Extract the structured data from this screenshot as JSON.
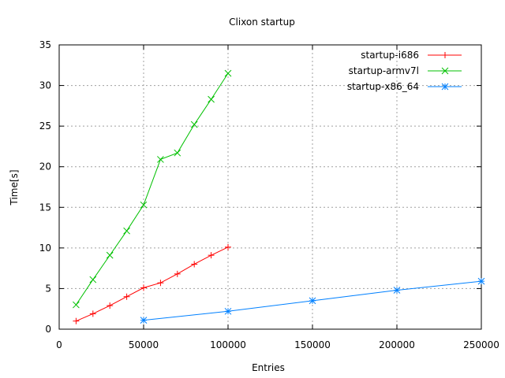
{
  "chart_data": {
    "type": "line",
    "title": "Clixon startup",
    "xlabel": "Entries",
    "ylabel": "Time[s]",
    "xlim": [
      0,
      250000
    ],
    "ylim": [
      0,
      35
    ],
    "xticks": [
      0,
      50000,
      100000,
      150000,
      200000,
      250000
    ],
    "yticks": [
      0,
      5,
      10,
      15,
      20,
      25,
      30,
      35
    ],
    "grid": true,
    "legend_position": "top-right",
    "series": [
      {
        "name": "startup-i686",
        "color": "#ff0000",
        "marker": "plus",
        "x": [
          10000,
          20000,
          30000,
          40000,
          50000,
          60000,
          70000,
          80000,
          90000,
          100000
        ],
        "y": [
          1.0,
          1.9,
          2.9,
          4.0,
          5.1,
          5.7,
          6.8,
          8.0,
          9.1,
          10.1
        ]
      },
      {
        "name": "startup-armv7l",
        "color": "#00c000",
        "marker": "cross",
        "x": [
          10000,
          20000,
          30000,
          40000,
          50000,
          60000,
          70000,
          80000,
          90000,
          100000
        ],
        "y": [
          3.0,
          6.1,
          9.1,
          12.1,
          15.3,
          20.9,
          21.7,
          25.2,
          28.3,
          31.5
        ]
      },
      {
        "name": "startup-x86_64",
        "color": "#0080ff",
        "marker": "star",
        "x": [
          50000,
          100000,
          150000,
          200000,
          250000
        ],
        "y": [
          1.1,
          2.2,
          3.5,
          4.8,
          5.9
        ]
      }
    ]
  }
}
